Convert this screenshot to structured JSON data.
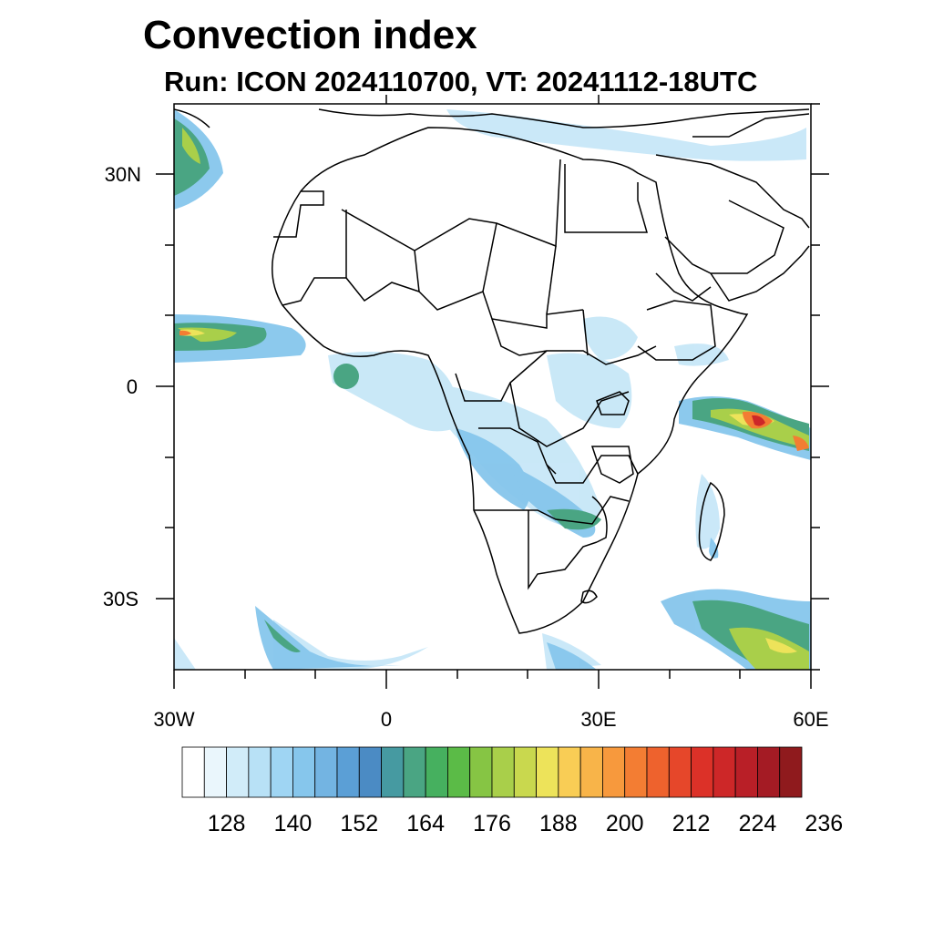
{
  "title": "Convection index",
  "subtitle": "Run: ICON 2024110700,  VT: 20241112-18UTC",
  "axes": {
    "lat_labels": [
      "30N",
      "0",
      "30S"
    ],
    "lon_labels": [
      "30W",
      "0",
      "30E",
      "60E"
    ]
  },
  "colorbar": {
    "labels": [
      "128",
      "140",
      "152",
      "164",
      "176",
      "188",
      "200",
      "212",
      "224",
      "236"
    ],
    "colors": [
      "#ffffff",
      "#eaf6fc",
      "#d1ecf9",
      "#b8e1f6",
      "#9fd5f3",
      "#86c6ec",
      "#73b4e2",
      "#5b9fd6",
      "#4b8bc4",
      "#469aa1",
      "#4aa583",
      "#46b05f",
      "#5bbb47",
      "#86c544",
      "#a9cf4a",
      "#c9d84e",
      "#ede35a",
      "#f9cd55",
      "#f8b449",
      "#f7993d",
      "#f37d33",
      "#ee622d",
      "#e6472a",
      "#dc3128",
      "#cd2728",
      "#b91f27",
      "#a41b24",
      "#8f1a1d"
    ]
  },
  "chart_data": {
    "type": "map",
    "title": "Convection index",
    "subtitle": "Run: ICON 2024110700,  VT: 20241112-18UTC",
    "lon_range": [
      -30,
      60
    ],
    "lat_range": [
      -40,
      40
    ],
    "xticks": [
      -30,
      0,
      30,
      60
    ],
    "yticks": [
      30,
      0,
      -30
    ],
    "colorbar_levels": [
      128,
      140,
      152,
      164,
      176,
      188,
      200,
      212,
      224,
      236
    ]
  }
}
